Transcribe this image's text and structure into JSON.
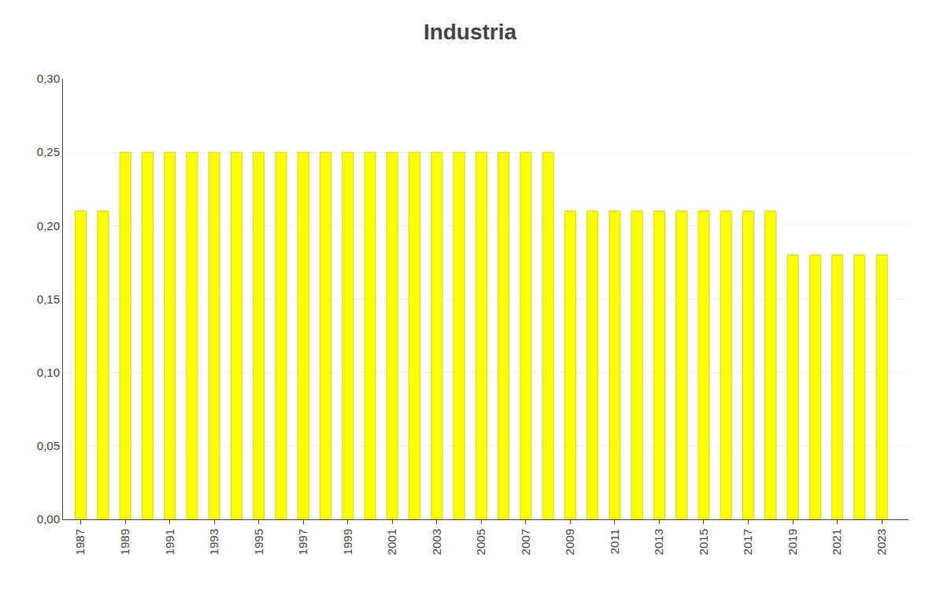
{
  "chart_data": {
    "type": "bar",
    "title": "Industria",
    "x": [
      1987,
      1988,
      1989,
      1990,
      1991,
      1992,
      1993,
      1994,
      1995,
      1996,
      1997,
      1998,
      1999,
      2000,
      2001,
      2002,
      2003,
      2004,
      2005,
      2006,
      2007,
      2008,
      2009,
      2010,
      2011,
      2012,
      2013,
      2014,
      2015,
      2016,
      2017,
      2018,
      2019,
      2020,
      2021,
      2022,
      2023
    ],
    "values": [
      0.21,
      0.21,
      0.25,
      0.25,
      0.25,
      0.25,
      0.25,
      0.25,
      0.25,
      0.25,
      0.25,
      0.25,
      0.25,
      0.25,
      0.25,
      0.25,
      0.25,
      0.25,
      0.25,
      0.25,
      0.25,
      0.25,
      0.21,
      0.21,
      0.21,
      0.21,
      0.21,
      0.21,
      0.21,
      0.21,
      0.21,
      0.21,
      0.18,
      0.18,
      0.18,
      0.18,
      0.18
    ],
    "color": "#ffff00",
    "xlim": [
      1986.2,
      2024.2
    ],
    "xticks": [
      1987,
      1989,
      1991,
      1993,
      1995,
      1997,
      1999,
      2001,
      2003,
      2005,
      2007,
      2009,
      2011,
      2013,
      2015,
      2017,
      2019,
      2021,
      2023
    ],
    "ylim": [
      0,
      0.3
    ],
    "yticks": [
      {
        "value": 0.0,
        "label": "0,00"
      },
      {
        "value": 0.05,
        "label": "0,05"
      },
      {
        "value": 0.1,
        "label": "0,10"
      },
      {
        "value": 0.15,
        "label": "0,15"
      },
      {
        "value": 0.2,
        "label": "0,20"
      },
      {
        "value": 0.25,
        "label": "0,25"
      },
      {
        "value": 0.3,
        "label": "0,30"
      }
    ],
    "grid": true
  }
}
